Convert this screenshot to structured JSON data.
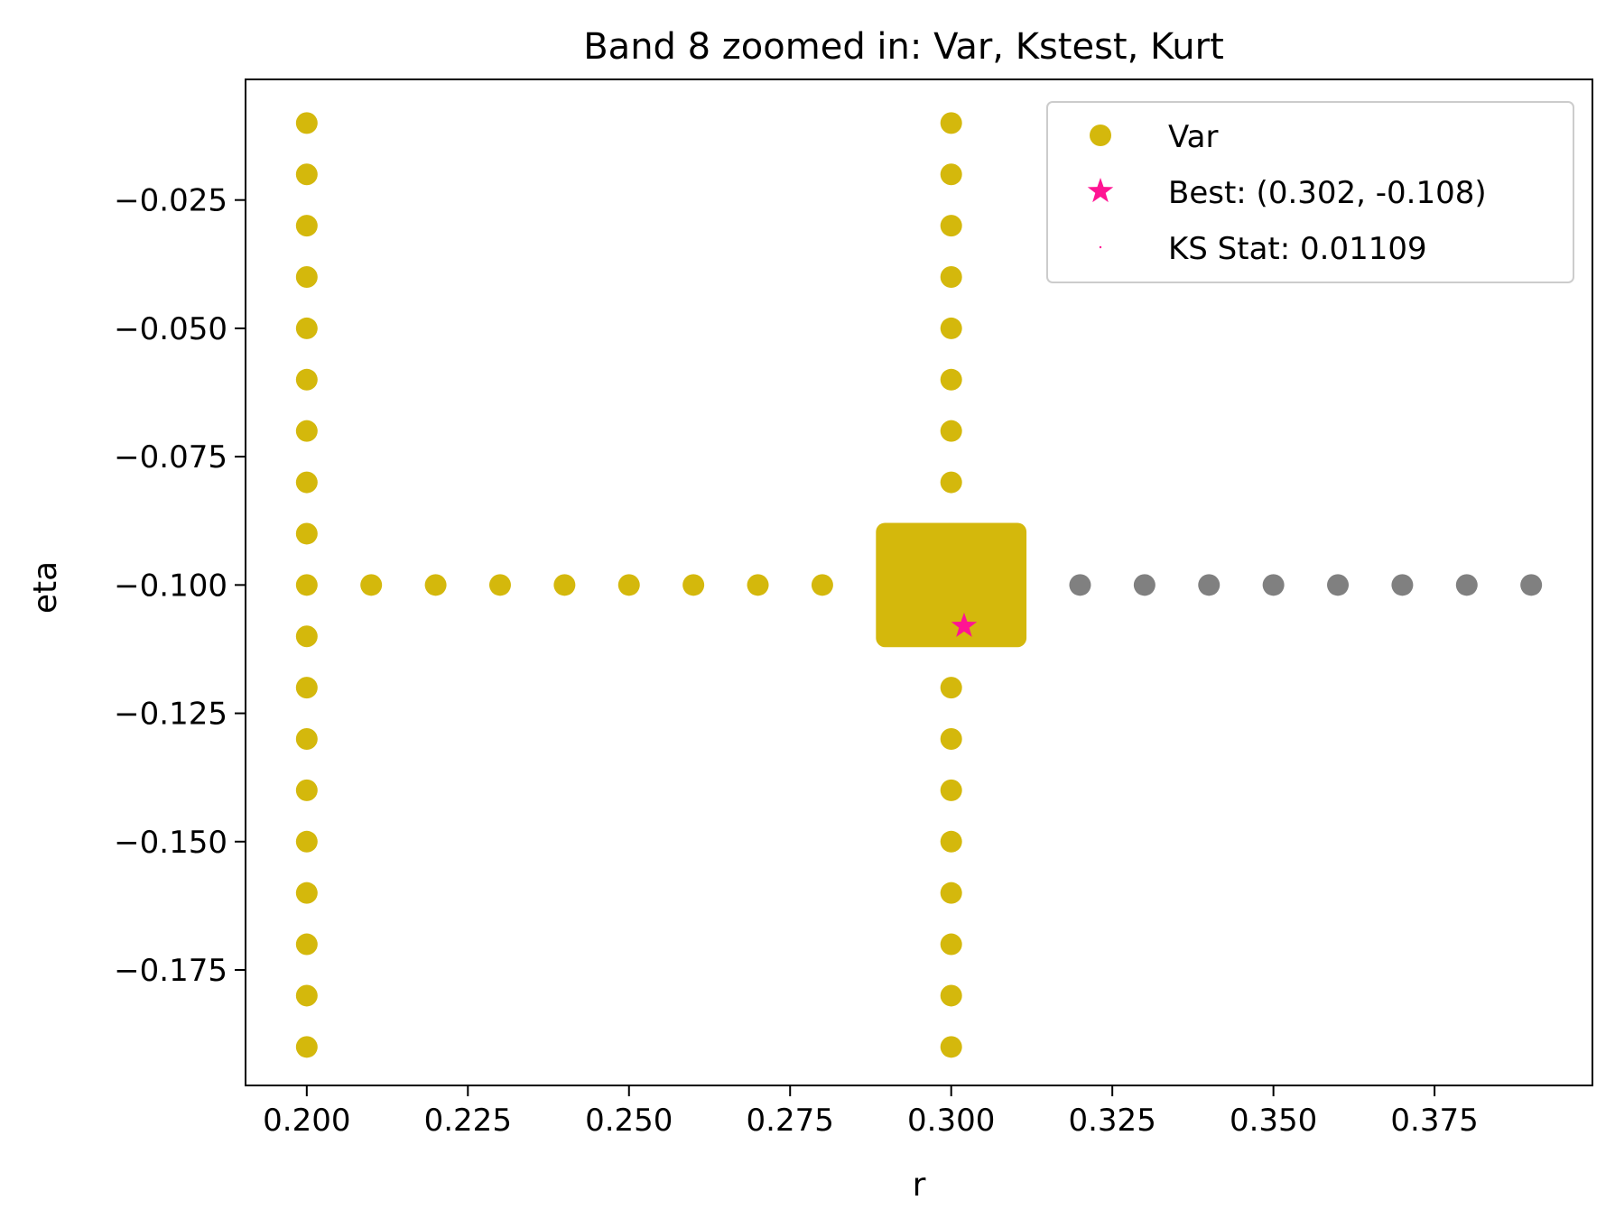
{
  "chart_data": {
    "type": "scatter",
    "title": "Band 8 zoomed in: Var, Kstest, Kurt",
    "xlabel": "r",
    "ylabel": "eta",
    "xlim": [
      0.1905,
      0.3995
    ],
    "ylim": [
      -0.1975,
      -0.0015
    ],
    "grid": false,
    "legend_position": "top-right",
    "x_ticks": [
      0.2,
      0.225,
      0.25,
      0.275,
      0.3,
      0.325,
      0.35,
      0.375
    ],
    "x_tick_labels": [
      "0.200",
      "0.225",
      "0.250",
      "0.275",
      "0.300",
      "0.325",
      "0.350",
      "0.375"
    ],
    "y_ticks": [
      -0.025,
      -0.05,
      -0.075,
      -0.1,
      -0.125,
      -0.15,
      -0.175
    ],
    "y_tick_labels": [
      "−0.025",
      "−0.050",
      "−0.075",
      "−0.100",
      "−0.125",
      "−0.150",
      "−0.175"
    ],
    "colors": {
      "var": "#d4b80c",
      "gray": "#808080",
      "best": "#ff1493",
      "ks": "#ff1493"
    },
    "series": [
      {
        "name": "Var",
        "color": "#d4b80c",
        "points": [
          [
            0.2,
            -0.01
          ],
          [
            0.2,
            -0.02
          ],
          [
            0.2,
            -0.03
          ],
          [
            0.2,
            -0.04
          ],
          [
            0.2,
            -0.05
          ],
          [
            0.2,
            -0.06
          ],
          [
            0.2,
            -0.07
          ],
          [
            0.2,
            -0.08
          ],
          [
            0.2,
            -0.09
          ],
          [
            0.2,
            -0.1
          ],
          [
            0.2,
            -0.11
          ],
          [
            0.2,
            -0.12
          ],
          [
            0.2,
            -0.13
          ],
          [
            0.2,
            -0.14
          ],
          [
            0.2,
            -0.15
          ],
          [
            0.2,
            -0.16
          ],
          [
            0.2,
            -0.17
          ],
          [
            0.2,
            -0.18
          ],
          [
            0.2,
            -0.19
          ],
          [
            0.21,
            -0.1
          ],
          [
            0.22,
            -0.1
          ],
          [
            0.23,
            -0.1
          ],
          [
            0.24,
            -0.1
          ],
          [
            0.25,
            -0.1
          ],
          [
            0.26,
            -0.1
          ],
          [
            0.27,
            -0.1
          ],
          [
            0.28,
            -0.1
          ],
          [
            0.3,
            -0.01
          ],
          [
            0.3,
            -0.02
          ],
          [
            0.3,
            -0.03
          ],
          [
            0.3,
            -0.04
          ],
          [
            0.3,
            -0.05
          ],
          [
            0.3,
            -0.06
          ],
          [
            0.3,
            -0.07
          ],
          [
            0.3,
            -0.08
          ],
          [
            0.3,
            -0.09
          ],
          [
            0.3,
            -0.12
          ],
          [
            0.3,
            -0.13
          ],
          [
            0.3,
            -0.14
          ],
          [
            0.3,
            -0.15
          ],
          [
            0.3,
            -0.16
          ],
          [
            0.3,
            -0.17
          ],
          [
            0.3,
            -0.18
          ],
          [
            0.3,
            -0.19
          ]
        ]
      },
      {
        "color": "#808080",
        "points": [
          [
            0.32,
            -0.1
          ],
          [
            0.33,
            -0.1
          ],
          [
            0.34,
            -0.1
          ],
          [
            0.35,
            -0.1
          ],
          [
            0.36,
            -0.1
          ],
          [
            0.37,
            -0.1
          ],
          [
            0.38,
            -0.1
          ],
          [
            0.39,
            -0.1
          ]
        ]
      }
    ],
    "dense_block": {
      "color": "#d4b80c",
      "x_range": [
        0.29,
        0.31
      ],
      "y_range": [
        -0.11,
        -0.09
      ]
    },
    "best_point": {
      "label": "Best: (0.302, -0.108)",
      "x": 0.302,
      "y": -0.108,
      "color": "#ff1493"
    },
    "legend": [
      {
        "label": "Var",
        "marker": "circle",
        "color": "#d4b80c"
      },
      {
        "label": "Best: (0.302, -0.108)",
        "marker": "star",
        "color": "#ff1493"
      },
      {
        "label": "KS Stat: 0.01109",
        "marker": "dot",
        "color": "#ff1493"
      }
    ]
  }
}
